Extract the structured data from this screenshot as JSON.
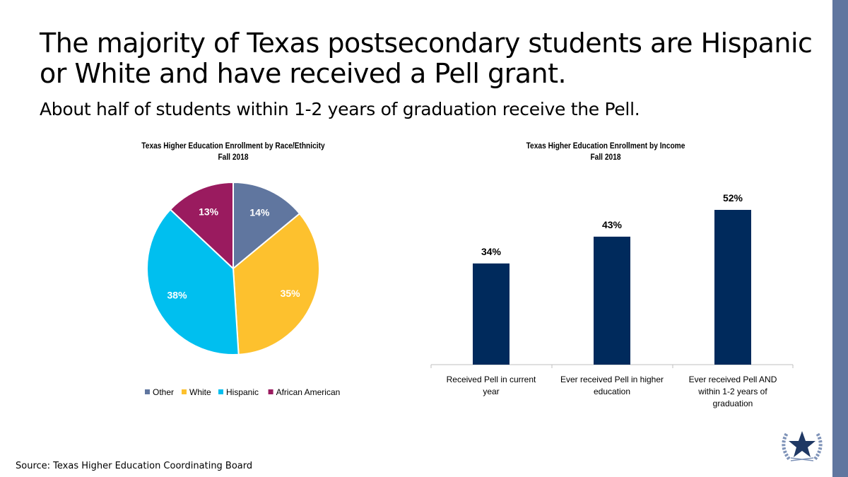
{
  "title": "The majority of Texas postsecondary students are Hispanic or White and have received a Pell grant.",
  "subtitle": "About half of students within 1-2 years of graduation receive the Pell.",
  "source": "Source: Texas Higher Education Coordinating Board",
  "chart_data": [
    {
      "type": "pie",
      "title": "Texas Higher Education Enrollment by Race/Ethnicity",
      "subtitle": "Fall 2018",
      "categories": [
        "Other",
        "White",
        "Hispanic",
        "African American"
      ],
      "values": [
        14,
        35,
        38,
        13
      ],
      "labels": [
        "14%",
        "35%",
        "38%",
        "13%"
      ],
      "colors": [
        "#60769f",
        "#fdc12e",
        "#00bfef",
        "#9a1b5f"
      ],
      "legend": "bottom"
    },
    {
      "type": "bar",
      "title": "Texas Higher Education Enrollment by Income",
      "subtitle": "Fall 2018",
      "categories": [
        "Received Pell in current year",
        "Ever received Pell in higher education",
        "Ever received Pell AND within 1-2 years of graduation"
      ],
      "values": [
        34,
        43,
        52
      ],
      "labels": [
        "34%",
        "43%",
        "52%"
      ],
      "color": "#002a5c",
      "ylim": [
        0,
        60
      ]
    }
  ]
}
